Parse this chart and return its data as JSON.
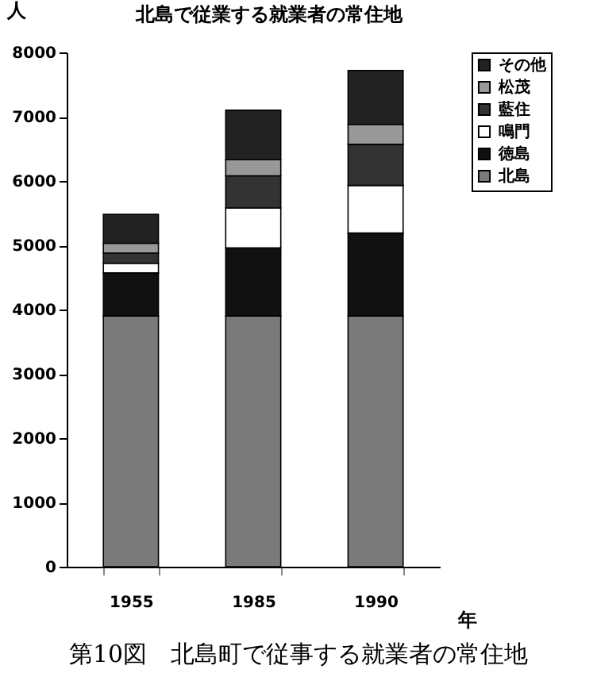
{
  "chart_data": {
    "type": "bar",
    "title": "北島で従業する就業者の常住地",
    "ylabel": "人",
    "xlabel": "年",
    "annotations": [
      "第10図　北島町で従事する就業者の常住地"
    ],
    "categories": [
      "1955",
      "1985",
      "1990"
    ],
    "stacked": true,
    "series": [
      {
        "name": "北島",
        "color": "#7a7a7a",
        "values": [
          3900,
          3900,
          3900
        ]
      },
      {
        "name": "徳島",
        "color": "#111111",
        "values": [
          670,
          1060,
          1290
        ]
      },
      {
        "name": "鳴門",
        "color": "#ffffff",
        "values": [
          150,
          620,
          740
        ]
      },
      {
        "name": "藍住",
        "color": "#333333",
        "values": [
          160,
          500,
          640
        ]
      },
      {
        "name": "松茂",
        "color": "#999999",
        "values": [
          150,
          250,
          310
        ]
      },
      {
        "name": "その他",
        "color": "#222222",
        "values": [
          450,
          770,
          840
        ]
      }
    ],
    "ylim": [
      0,
      8000
    ],
    "yticks": [
      0,
      1000,
      2000,
      3000,
      4000,
      5000,
      6000,
      7000,
      8000
    ],
    "grid": false,
    "legend": "right"
  }
}
